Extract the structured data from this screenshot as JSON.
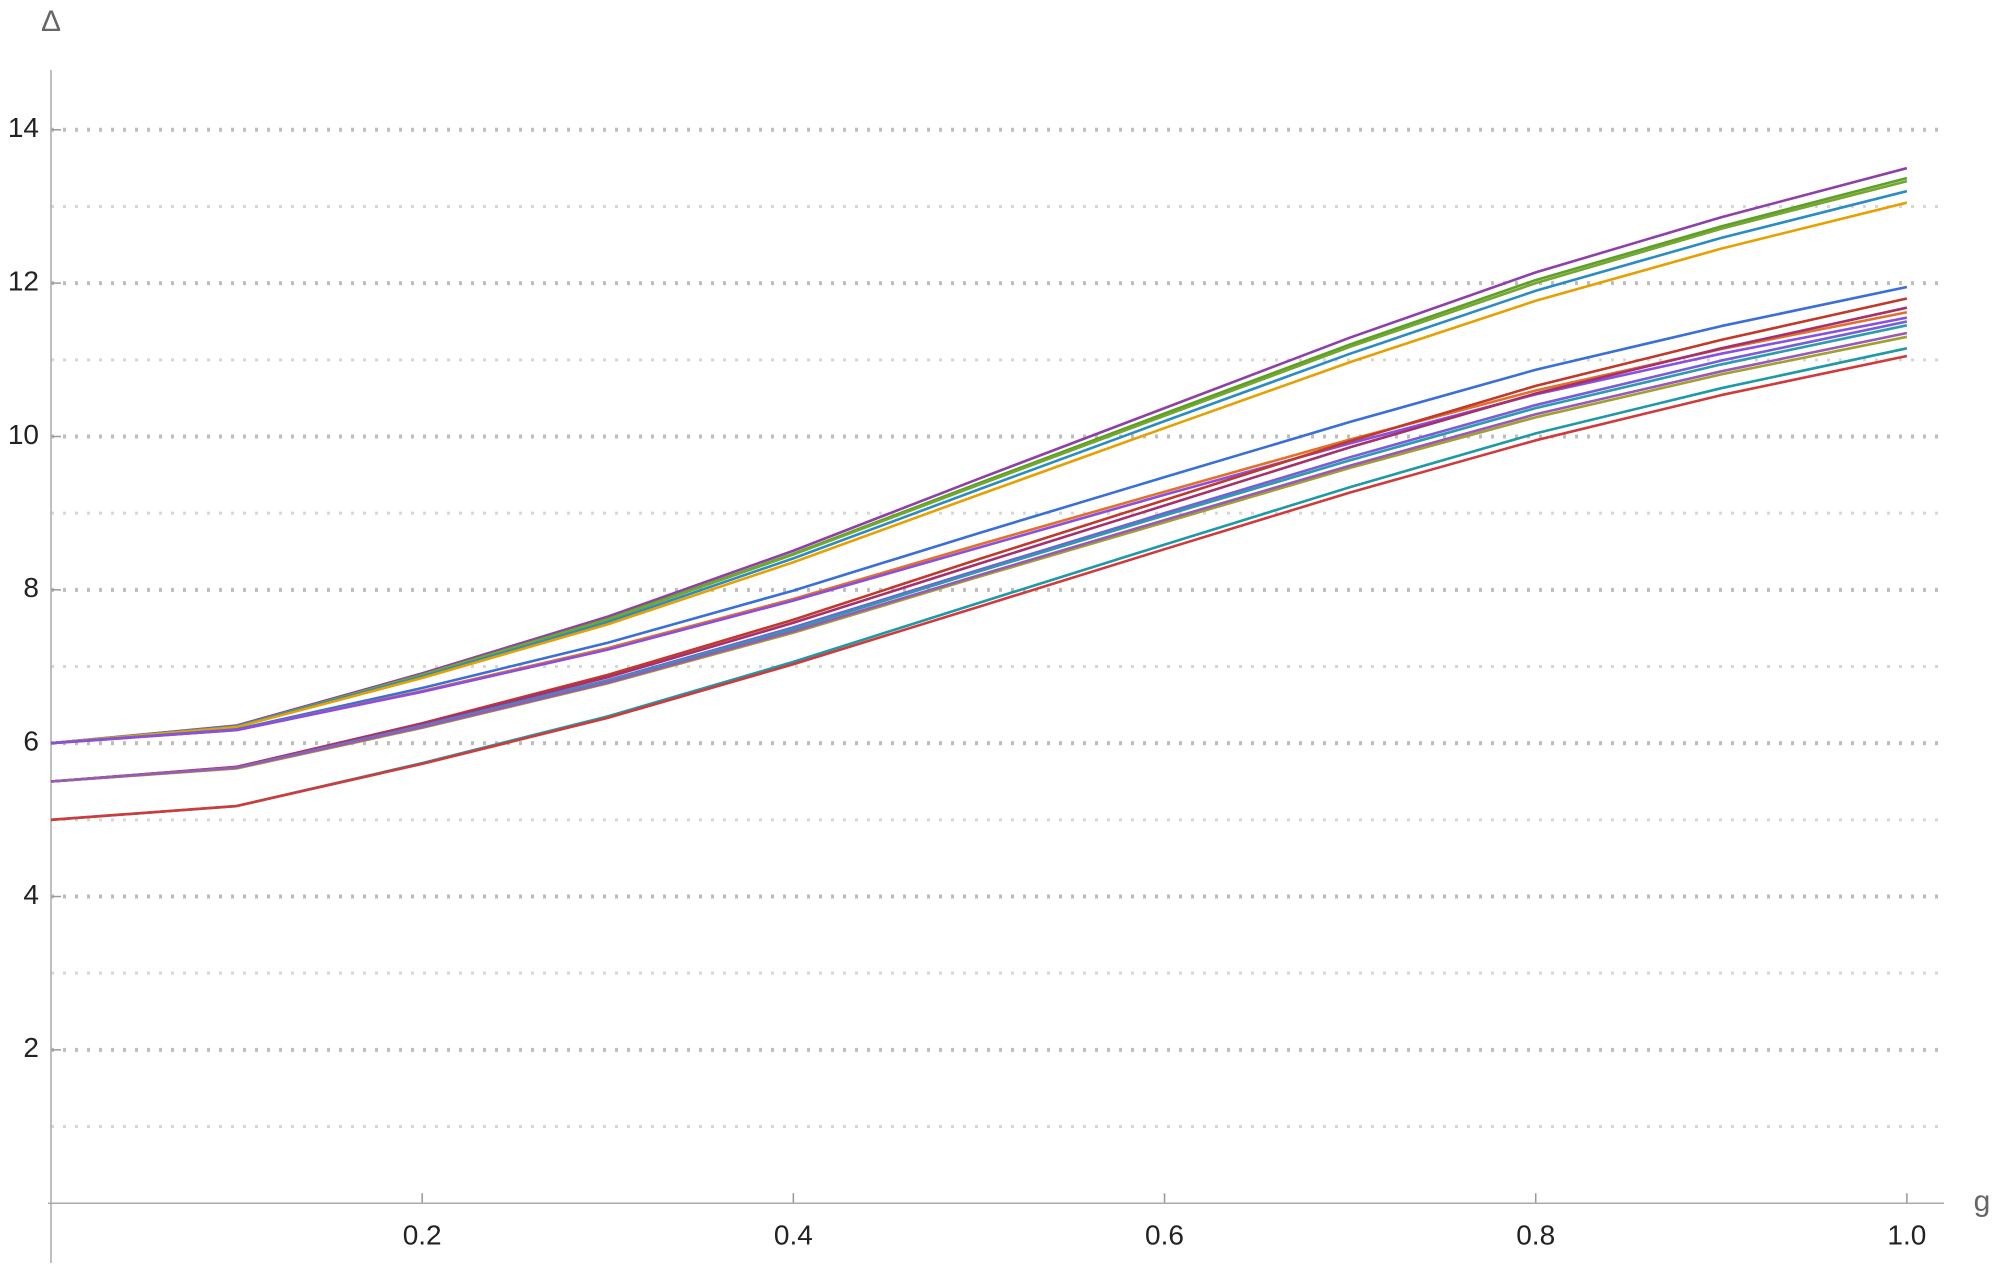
{
  "chart_data": {
    "type": "line",
    "x_label": "g",
    "y_label": "Δ",
    "x": [
      0,
      0.1,
      0.2,
      0.3,
      0.4,
      0.5,
      0.6,
      0.7,
      0.8,
      0.9,
      1.0
    ],
    "xlim": [
      0,
      1.02
    ],
    "ylim": [
      -0.78,
      14.78
    ],
    "xticks": [
      0.2,
      0.4,
      0.6,
      {
        "value": 0.8,
        "label": "0.8"
      },
      {
        "value": 1.0,
        "label": "1.0"
      }
    ],
    "yticks": [
      2,
      4,
      6,
      8,
      10,
      12,
      14
    ],
    "ygrid_minor": [
      1,
      3,
      5,
      7,
      9,
      11,
      13
    ],
    "grid": true,
    "series": [
      {
        "color": "#8f3fa8",
        "values": [
          6,
          6.23,
          6.91,
          7.65,
          8.51,
          9.45,
          10.37,
          11.29,
          12.14,
          12.86,
          13.5
        ]
      },
      {
        "color": "#5e9e2a",
        "values": [
          6,
          6.22,
          6.89,
          7.62,
          8.47,
          9.39,
          10.3,
          11.2,
          12.04,
          12.74,
          13.37
        ]
      },
      {
        "color": "#74a82c",
        "values": [
          6,
          6.22,
          6.89,
          7.61,
          8.46,
          9.37,
          10.27,
          11.17,
          12.0,
          12.71,
          13.33
        ]
      },
      {
        "color": "#2b8cc4",
        "values": [
          6,
          6.22,
          6.87,
          7.58,
          8.41,
          9.31,
          10.2,
          11.08,
          11.9,
          12.59,
          13.2
        ]
      },
      {
        "color": "#e6a000",
        "values": [
          6,
          6.21,
          6.85,
          7.55,
          8.36,
          9.24,
          10.11,
          10.97,
          11.77,
          12.45,
          13.05
        ]
      },
      {
        "color": "#3a6fd8",
        "values": [
          6,
          6.18,
          6.72,
          7.31,
          7.99,
          8.74,
          9.47,
          10.19,
          10.87,
          11.44,
          11.95
        ]
      },
      {
        "color": "#e0702a",
        "values": [
          6,
          6.17,
          6.68,
          7.24,
          7.88,
          8.59,
          9.28,
          9.96,
          10.6,
          11.14,
          11.62
        ]
      },
      {
        "color": "#8a4ee0",
        "values": [
          6,
          6.17,
          6.67,
          7.22,
          7.86,
          8.55,
          9.24,
          9.91,
          10.55,
          11.08,
          11.55
        ]
      },
      {
        "color": "#c0392b",
        "values": [
          5.5,
          5.69,
          6.26,
          6.89,
          7.61,
          8.4,
          9.17,
          9.94,
          10.66,
          11.26,
          11.8
        ]
      },
      {
        "color": "#a5306b",
        "values": [
          5.5,
          5.69,
          6.25,
          6.86,
          7.57,
          8.34,
          9.1,
          9.86,
          10.56,
          11.15,
          11.68
        ]
      },
      {
        "color": "#7a5cd6",
        "values": [
          5.5,
          5.68,
          6.23,
          6.82,
          7.51,
          8.26,
          9.0,
          9.73,
          10.41,
          10.99,
          11.5
        ]
      },
      {
        "color": "#2a9bb0",
        "values": [
          5.5,
          5.68,
          6.22,
          6.81,
          7.49,
          8.24,
          8.97,
          9.69,
          10.37,
          10.94,
          11.45
        ]
      },
      {
        "color": "#a0a030",
        "values": [
          5.5,
          5.67,
          6.2,
          6.78,
          7.44,
          8.17,
          8.88,
          9.59,
          10.25,
          10.81,
          11.3
        ]
      },
      {
        "color": "#9b59b6",
        "values": [
          5.5,
          5.68,
          6.21,
          6.79,
          7.46,
          8.19,
          8.91,
          9.62,
          10.29,
          10.85,
          11.35
        ]
      },
      {
        "color": "#1f98a8",
        "values": [
          5,
          5.18,
          5.74,
          6.35,
          7.06,
          7.83,
          8.59,
          9.34,
          10.04,
          10.63,
          11.15
        ]
      },
      {
        "color": "#d03a3a",
        "values": [
          5,
          5.18,
          5.73,
          6.33,
          7.03,
          7.78,
          8.53,
          9.27,
          9.95,
          10.54,
          11.05
        ]
      }
    ]
  }
}
